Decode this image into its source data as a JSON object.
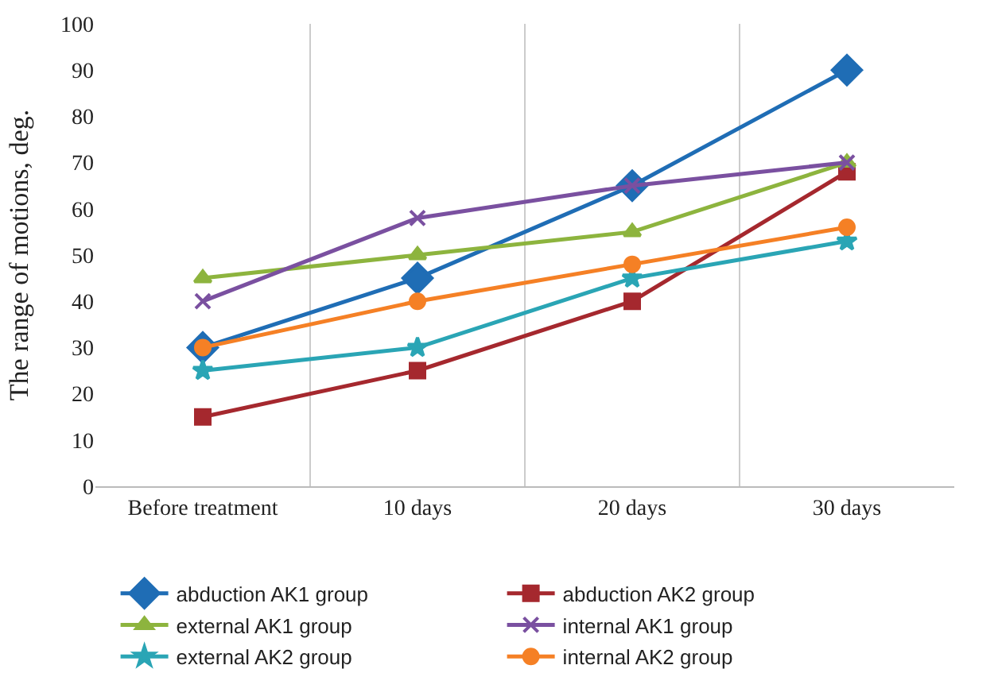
{
  "chart_data": {
    "type": "line",
    "ylabel": "The range of motions, deg.",
    "categories": [
      "Before treatment",
      "10 days",
      "20 days",
      "30 days"
    ],
    "ylim": [
      0,
      100
    ],
    "yticks": [
      0,
      10,
      20,
      30,
      40,
      50,
      60,
      70,
      80,
      90,
      100
    ],
    "grid": "x",
    "legend": "bottom",
    "line_style": "solid",
    "series": [
      {
        "name": "abduction AK1 group",
        "color": "#1f6db5",
        "marker": "diamond",
        "values": [
          30,
          45,
          65,
          90
        ]
      },
      {
        "name": "abduction AK2 group",
        "color": "#a5282e",
        "marker": "square",
        "values": [
          15,
          25,
          40,
          68
        ]
      },
      {
        "name": "external AK1 group",
        "color": "#8db43e",
        "marker": "triangle",
        "values": [
          45,
          50,
          55,
          70
        ]
      },
      {
        "name": "internal AK1 group",
        "color": "#7a50a0",
        "marker": "cross",
        "values": [
          40,
          58,
          65,
          70
        ]
      },
      {
        "name": "external AK2 group",
        "color": "#2aa5b5",
        "marker": "star",
        "values": [
          25,
          30,
          45,
          53
        ]
      },
      {
        "name": "internal AK2 group",
        "color": "#f58025",
        "marker": "circle",
        "values": [
          30,
          40,
          48,
          56
        ]
      }
    ]
  }
}
